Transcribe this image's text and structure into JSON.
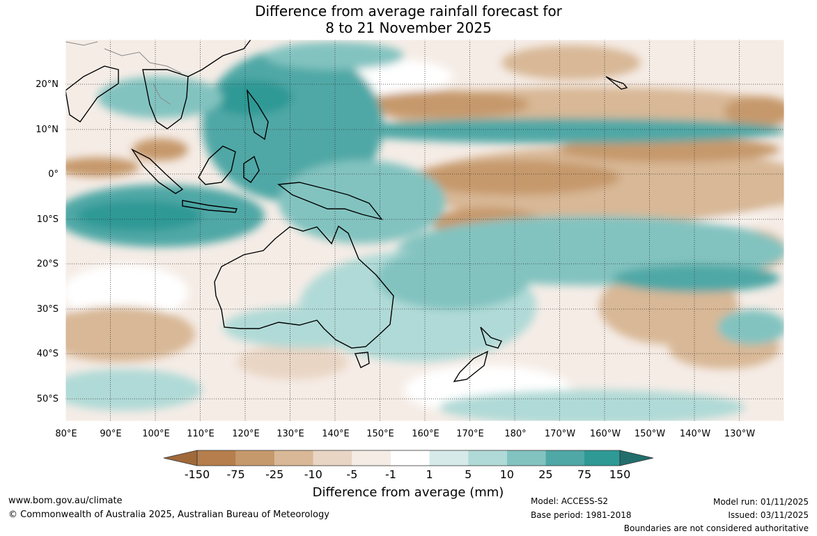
{
  "title": {
    "line1": "Difference from average rainfall forecast for",
    "line2": "8 to 21 November 2025"
  },
  "map": {
    "lat_labels": [
      "20°N",
      "10°N",
      "0°",
      "10°S",
      "20°S",
      "30°S",
      "40°S",
      "50°S"
    ],
    "lon_labels": [
      "80°E",
      "90°E",
      "100°E",
      "110°E",
      "120°E",
      "130°E",
      "140°E",
      "150°E",
      "160°E",
      "170°E",
      "180°",
      "170°W",
      "160°W",
      "150°W",
      "140°W",
      "130°W"
    ],
    "gridlines": true
  },
  "colorbar": {
    "title": "Difference from average (mm)",
    "levels": [
      "-150",
      "-75",
      "-25",
      "-10",
      "-5",
      "-1",
      "1",
      "5",
      "10",
      "25",
      "75",
      "150"
    ],
    "colors": [
      "#a0693a",
      "#b57e4c",
      "#c6996c",
      "#d8b896",
      "#e9d5c4",
      "#f5ece6",
      "#ffffff",
      "#d6ebe9",
      "#b0dad7",
      "#82c3c0",
      "#4fa8a6",
      "#2e9995",
      "#216e6c"
    ]
  },
  "footer": {
    "url": "www.bom.gov.au/climate",
    "copyright": "© Commonwealth of Australia 2025, Australian Bureau of Meteorology",
    "model": "Model: ACCESS-S2",
    "base_period": "Base period: 1981-2018",
    "model_run": "Model run: 01/11/2025",
    "issued": "Issued: 03/11/2025",
    "disclaimer": "Boundaries are not considered authoritative"
  }
}
